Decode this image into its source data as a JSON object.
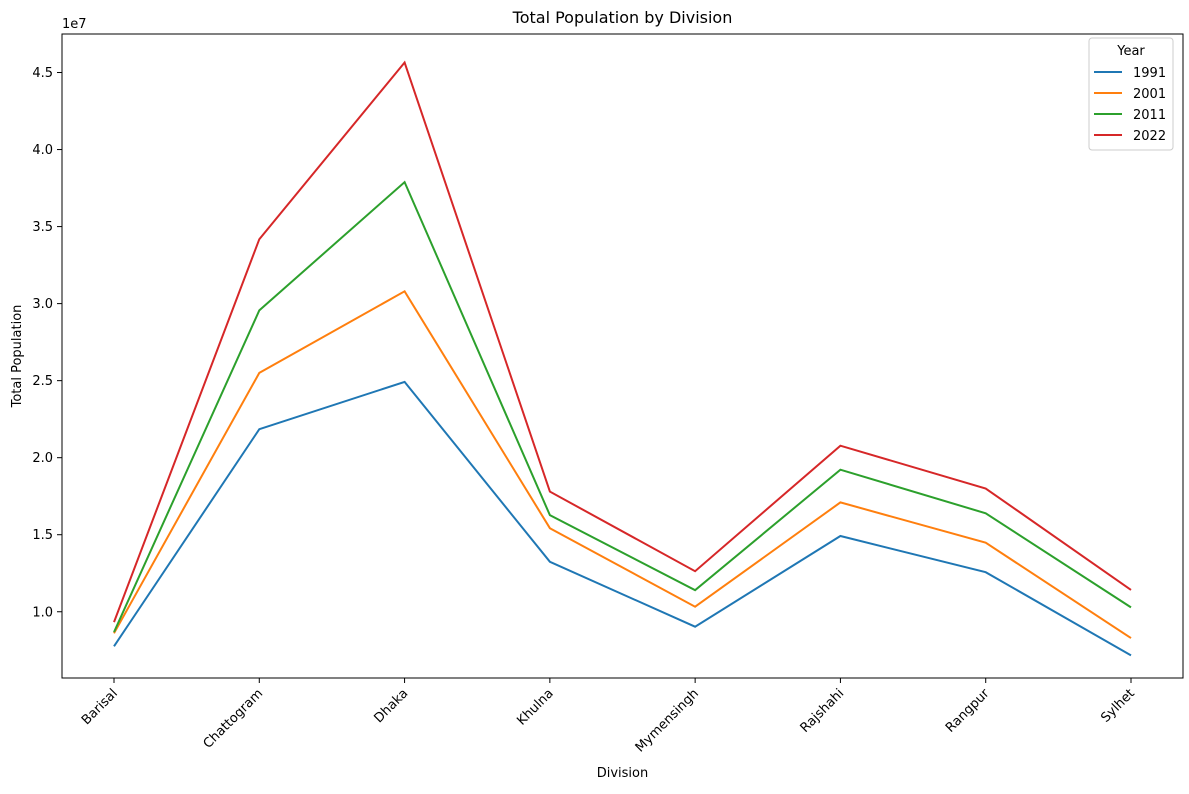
{
  "chart_data": {
    "type": "line",
    "title": "Total Population by Division",
    "xlabel": "Division",
    "ylabel": "Total Population",
    "y_offset_label": "1e7",
    "categories": [
      "Barisal",
      "Chattogram",
      "Dhaka",
      "Khulna",
      "Mymensingh",
      "Rajshahi",
      "Rangpur",
      "Sylhet"
    ],
    "ylim": [
      5700000,
      47500000
    ],
    "y_ticks": [
      10000000,
      15000000,
      20000000,
      25000000,
      30000000,
      35000000,
      40000000,
      45000000
    ],
    "y_tick_labels": [
      "1.0",
      "1.5",
      "2.0",
      "2.5",
      "3.0",
      "3.5",
      "4.0",
      "4.5"
    ],
    "legend": {
      "title": "Year",
      "position": "top-right"
    },
    "grid": false,
    "series": [
      {
        "name": "1991",
        "color": "#1f77b4",
        "values": [
          7760000,
          21850000,
          24920000,
          13240000,
          9030000,
          14920000,
          12570000,
          7170000
        ]
      },
      {
        "name": "2001",
        "color": "#ff7f0e",
        "values": [
          8600000,
          25500000,
          30800000,
          15420000,
          10330000,
          17100000,
          14480000,
          8290000
        ]
      },
      {
        "name": "2011",
        "color": "#2ca02c",
        "values": [
          8680000,
          29560000,
          37890000,
          16270000,
          11400000,
          19220000,
          16390000,
          10280000
        ]
      },
      {
        "name": "2022",
        "color": "#d62728",
        "values": [
          9330000,
          34180000,
          45650000,
          17800000,
          12630000,
          20780000,
          18000000,
          11420000
        ]
      }
    ]
  }
}
